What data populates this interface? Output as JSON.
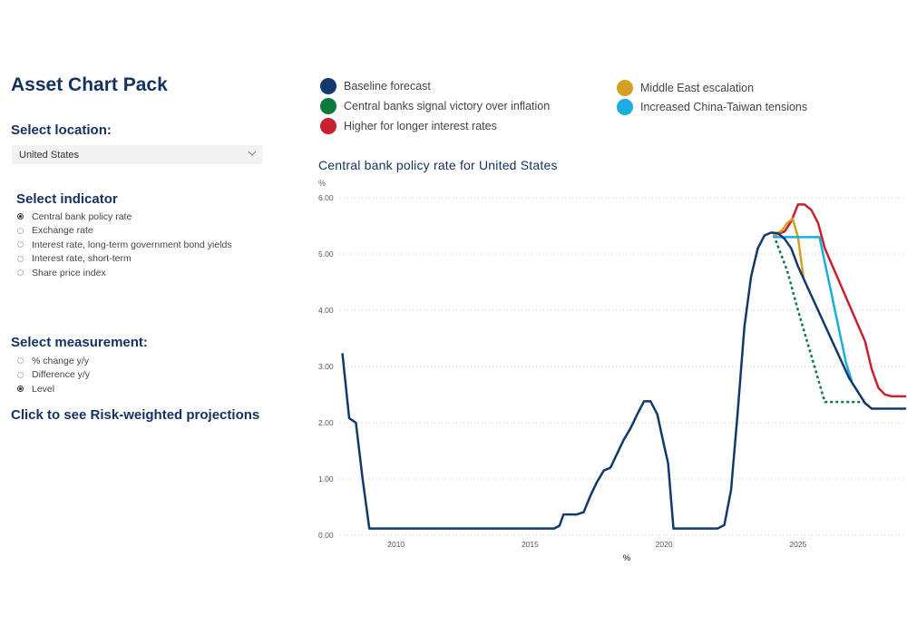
{
  "app_title": "Asset Chart Pack",
  "location": {
    "heading": "Select location:",
    "selected": "United States"
  },
  "indicator": {
    "heading": "Select indicator",
    "options": [
      {
        "label": "Central bank policy rate",
        "selected": true
      },
      {
        "label": "Exchange rate",
        "selected": false
      },
      {
        "label": "Interest rate, long-term government bond yields",
        "selected": false
      },
      {
        "label": "Interest rate, short-term",
        "selected": false
      },
      {
        "label": "Share price index",
        "selected": false
      }
    ]
  },
  "measurement": {
    "heading": "Select measurement:",
    "options": [
      {
        "label": "% change y/y",
        "selected": false
      },
      {
        "label": "Difference y/y",
        "selected": false
      },
      {
        "label": "Level",
        "selected": true
      }
    ]
  },
  "risk_link": "Click to see Risk-weighted projections",
  "legend": [
    {
      "label": "Baseline forecast",
      "color": "#12396b"
    },
    {
      "label": "Central banks signal victory over inflation",
      "color": "#0e7a3e"
    },
    {
      "label": "Higher for longer interest rates",
      "color": "#c8202f"
    },
    {
      "label": "Middle East escalation",
      "color": "#d4a024"
    },
    {
      "label": "Increased China-Taiwan tensions",
      "color": "#1aaee0"
    }
  ],
  "chart_data": {
    "type": "line",
    "title": "Central bank policy rate for United States",
    "ylabel": "%",
    "xlabel": "%",
    "ylim": [
      0,
      6
    ],
    "yticks": [
      "0.00",
      "1.00",
      "2.00",
      "3.00",
      "4.00",
      "5.00",
      "6.00"
    ],
    "xticks": [
      "2010",
      "2015",
      "2020",
      "2025"
    ],
    "xlim": [
      2008.0,
      2029.0
    ],
    "grid": "horizontal dotted",
    "series": [
      {
        "name": "Baseline forecast",
        "color": "#12396b",
        "dash": false,
        "points": [
          [
            2008.0,
            3.22
          ],
          [
            2008.25,
            2.08
          ],
          [
            2008.5,
            2.0
          ],
          [
            2008.75,
            1.0
          ],
          [
            2009.0,
            0.12
          ],
          [
            2015.9,
            0.12
          ],
          [
            2016.1,
            0.17
          ],
          [
            2016.25,
            0.37
          ],
          [
            2016.75,
            0.37
          ],
          [
            2017.0,
            0.41
          ],
          [
            2017.25,
            0.7
          ],
          [
            2017.5,
            0.95
          ],
          [
            2017.75,
            1.15
          ],
          [
            2018.0,
            1.2
          ],
          [
            2018.25,
            1.45
          ],
          [
            2018.5,
            1.7
          ],
          [
            2018.75,
            1.9
          ],
          [
            2019.0,
            2.15
          ],
          [
            2019.25,
            2.38
          ],
          [
            2019.5,
            2.38
          ],
          [
            2019.75,
            2.15
          ],
          [
            2020.0,
            1.6
          ],
          [
            2020.15,
            1.28
          ],
          [
            2020.35,
            0.12
          ],
          [
            2022.0,
            0.12
          ],
          [
            2022.25,
            0.18
          ],
          [
            2022.5,
            0.8
          ],
          [
            2022.75,
            2.2
          ],
          [
            2023.0,
            3.7
          ],
          [
            2023.25,
            4.6
          ],
          [
            2023.5,
            5.1
          ],
          [
            2023.75,
            5.33
          ],
          [
            2024.0,
            5.38
          ],
          [
            2024.25,
            5.37
          ],
          [
            2024.5,
            5.27
          ],
          [
            2024.75,
            5.1
          ],
          [
            2025.0,
            4.78
          ],
          [
            2026.9,
            2.8
          ],
          [
            2027.5,
            2.35
          ],
          [
            2027.75,
            2.25
          ],
          [
            2029.0,
            2.25
          ]
        ]
      },
      {
        "name": "Central banks signal victory over inflation",
        "color": "#0e7a3e",
        "dash": true,
        "points": [
          [
            2024.1,
            5.33
          ],
          [
            2024.6,
            4.7
          ],
          [
            2025.0,
            4.0
          ],
          [
            2026.0,
            2.37
          ],
          [
            2027.5,
            2.37
          ]
        ]
      },
      {
        "name": "Higher for longer interest rates",
        "color": "#c8202f",
        "dash": false,
        "points": [
          [
            2024.1,
            5.33
          ],
          [
            2024.5,
            5.4
          ],
          [
            2024.75,
            5.58
          ],
          [
            2025.0,
            5.88
          ],
          [
            2025.25,
            5.88
          ],
          [
            2025.5,
            5.78
          ],
          [
            2025.75,
            5.55
          ],
          [
            2026.0,
            5.1
          ],
          [
            2027.5,
            3.45
          ],
          [
            2027.75,
            2.95
          ],
          [
            2028.0,
            2.62
          ],
          [
            2028.25,
            2.5
          ],
          [
            2028.5,
            2.47
          ],
          [
            2029.0,
            2.47
          ]
        ]
      },
      {
        "name": "Middle East escalation",
        "color": "#d4a024",
        "dash": false,
        "points": [
          [
            2024.1,
            5.33
          ],
          [
            2024.4,
            5.42
          ],
          [
            2024.6,
            5.55
          ],
          [
            2024.8,
            5.63
          ],
          [
            2025.0,
            5.3
          ],
          [
            2025.2,
            4.6
          ]
        ]
      },
      {
        "name": "Increased China-Taiwan tensions",
        "color": "#1aaee0",
        "dash": false,
        "points": [
          [
            2024.1,
            5.3
          ],
          [
            2025.8,
            5.3
          ],
          [
            2026.8,
            3.05
          ],
          [
            2027.0,
            2.75
          ]
        ]
      }
    ]
  }
}
